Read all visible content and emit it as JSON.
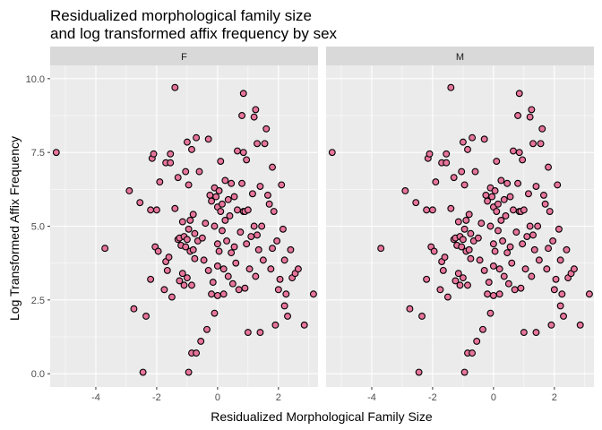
{
  "chart_data": {
    "type": "scatter",
    "title_lines": [
      "Residualized morphological family size",
      "and log transformed affix frequency by sex"
    ],
    "xlabel": "Residualized Morphological Family Size",
    "ylabel": "Log Transformed Affix Frequency",
    "xlim": [
      -5.5,
      3.3
    ],
    "ylim": [
      -0.45,
      10.45
    ],
    "x_ticks": [
      -4,
      -2,
      0,
      2
    ],
    "x_tick_labels": [
      "-4",
      "-2",
      "0",
      "2"
    ],
    "y_ticks": [
      0,
      2.5,
      5,
      7.5,
      10
    ],
    "y_tick_labels": [
      "0.0",
      "2.5",
      "5.0",
      "7.5",
      "10.0"
    ],
    "grid": true,
    "legend": "none",
    "colors": {
      "panel_bg": "#ebebeb",
      "grid_major": "#ffffff",
      "strip_bg": "#d9d9d9",
      "point_fill": "#e7759b",
      "point_stroke": "#000000"
    },
    "facets": [
      "F",
      "M"
    ],
    "points": [
      [
        -5.3,
        7.5
      ],
      [
        -3.7,
        4.25
      ],
      [
        -2.9,
        6.2
      ],
      [
        -2.75,
        2.2
      ],
      [
        -2.55,
        5.8
      ],
      [
        -2.45,
        0.05
      ],
      [
        -2.35,
        1.95
      ],
      [
        -2.2,
        3.2
      ],
      [
        -2.2,
        5.55
      ],
      [
        -2.15,
        7.3
      ],
      [
        -2.1,
        7.45
      ],
      [
        -2.05,
        4.3
      ],
      [
        -2.0,
        5.55
      ],
      [
        -1.95,
        4.15
      ],
      [
        -1.9,
        6.5
      ],
      [
        -1.75,
        2.85
      ],
      [
        -1.7,
        3.8
      ],
      [
        -1.7,
        7.15
      ],
      [
        -1.65,
        3.5
      ],
      [
        -1.6,
        3.95
      ],
      [
        -1.55,
        7.45
      ],
      [
        -1.55,
        7.15
      ],
      [
        -1.5,
        2.6
      ],
      [
        -1.4,
        9.7
      ],
      [
        -1.4,
        5.6
      ],
      [
        -1.3,
        6.65
      ],
      [
        -1.3,
        4.55
      ],
      [
        -1.25,
        4.6
      ],
      [
        -1.25,
        3.15
      ],
      [
        -1.2,
        4.35
      ],
      [
        -1.15,
        3.4
      ],
      [
        -1.15,
        5.15
      ],
      [
        -1.1,
        4.65
      ],
      [
        -1.1,
        3.0
      ],
      [
        -1.05,
        4.3
      ],
      [
        -1.05,
        6.85
      ],
      [
        -1.0,
        7.85
      ],
      [
        -1.0,
        4.55
      ],
      [
        -1.0,
        3.25
      ],
      [
        -0.95,
        0.05
      ],
      [
        -0.95,
        4.9
      ],
      [
        -0.95,
        6.4
      ],
      [
        -0.9,
        5.2
      ],
      [
        -0.9,
        4.15
      ],
      [
        -0.85,
        0.7
      ],
      [
        -0.85,
        3.0
      ],
      [
        -0.85,
        7.6
      ],
      [
        -0.8,
        4.2
      ],
      [
        -0.8,
        5.4
      ],
      [
        -0.75,
        4.75
      ],
      [
        -0.75,
        3.9
      ],
      [
        -0.7,
        8.0
      ],
      [
        -0.7,
        0.7
      ],
      [
        -0.65,
        4.5
      ],
      [
        -0.6,
        6.85
      ],
      [
        -0.55,
        1.1
      ],
      [
        -0.5,
        4.6
      ],
      [
        -0.45,
        3.85
      ],
      [
        -0.4,
        5.1
      ],
      [
        -0.35,
        1.5
      ],
      [
        -0.3,
        7.95
      ],
      [
        -0.3,
        3.5
      ],
      [
        -0.25,
        6.05
      ],
      [
        -0.2,
        5.85
      ],
      [
        -0.2,
        2.7
      ],
      [
        -0.15,
        3.1
      ],
      [
        -0.1,
        6.3
      ],
      [
        -0.1,
        5.0
      ],
      [
        -0.1,
        2.05
      ],
      [
        -0.05,
        6.0
      ],
      [
        0.0,
        5.65
      ],
      [
        0.0,
        4.4
      ],
      [
        0.0,
        3.65
      ],
      [
        0.0,
        2.65
      ],
      [
        0.05,
        6.2
      ],
      [
        0.05,
        4.15
      ],
      [
        0.1,
        5.5
      ],
      [
        0.1,
        7.2
      ],
      [
        0.15,
        5.75
      ],
      [
        0.15,
        4.85
      ],
      [
        0.2,
        3.55
      ],
      [
        0.2,
        2.7
      ],
      [
        0.25,
        5.2
      ],
      [
        0.25,
        6.55
      ],
      [
        0.3,
        4.5
      ],
      [
        0.35,
        5.9
      ],
      [
        0.35,
        3.3
      ],
      [
        0.4,
        5.35
      ],
      [
        0.45,
        6.45
      ],
      [
        0.45,
        4.1
      ],
      [
        0.5,
        3.05
      ],
      [
        0.55,
        6.0
      ],
      [
        0.55,
        4.3
      ],
      [
        0.6,
        3.75
      ],
      [
        0.65,
        7.55
      ],
      [
        0.65,
        5.55
      ],
      [
        0.7,
        2.85
      ],
      [
        0.75,
        4.8
      ],
      [
        0.8,
        8.75
      ],
      [
        0.8,
        6.45
      ],
      [
        0.85,
        9.5
      ],
      [
        0.85,
        5.5
      ],
      [
        0.85,
        7.5
      ],
      [
        0.9,
        5.5
      ],
      [
        0.9,
        2.9
      ],
      [
        0.95,
        4.4
      ],
      [
        0.95,
        7.25
      ],
      [
        1.0,
        5.55
      ],
      [
        1.0,
        1.4
      ],
      [
        1.05,
        3.55
      ],
      [
        1.1,
        4.65
      ],
      [
        1.15,
        6.1
      ],
      [
        1.2,
        8.7
      ],
      [
        1.2,
        5.0
      ],
      [
        1.25,
        3.3
      ],
      [
        1.25,
        8.95
      ],
      [
        1.3,
        7.8
      ],
      [
        1.3,
        4.7
      ],
      [
        1.35,
        4.2
      ],
      [
        1.4,
        6.35
      ],
      [
        1.4,
        1.4
      ],
      [
        1.45,
        5.0
      ],
      [
        1.5,
        3.85
      ],
      [
        1.55,
        7.8
      ],
      [
        1.6,
        8.3
      ],
      [
        1.65,
        6.05
      ],
      [
        1.7,
        5.75
      ],
      [
        1.75,
        3.55
      ],
      [
        1.8,
        4.25
      ],
      [
        1.8,
        7.0
      ],
      [
        1.85,
        5.5
      ],
      [
        1.9,
        1.65
      ],
      [
        1.95,
        4.5
      ],
      [
        2.0,
        2.85
      ],
      [
        2.05,
        3.2
      ],
      [
        2.1,
        6.4
      ],
      [
        2.15,
        4.9
      ],
      [
        2.2,
        2.3
      ],
      [
        2.2,
        3.85
      ],
      [
        2.25,
        2.7
      ],
      [
        2.3,
        1.95
      ],
      [
        2.4,
        4.2
      ],
      [
        2.45,
        3.25
      ],
      [
        2.55,
        3.4
      ],
      [
        2.65,
        3.55
      ],
      [
        2.85,
        1.65
      ],
      [
        3.15,
        2.7
      ]
    ]
  }
}
